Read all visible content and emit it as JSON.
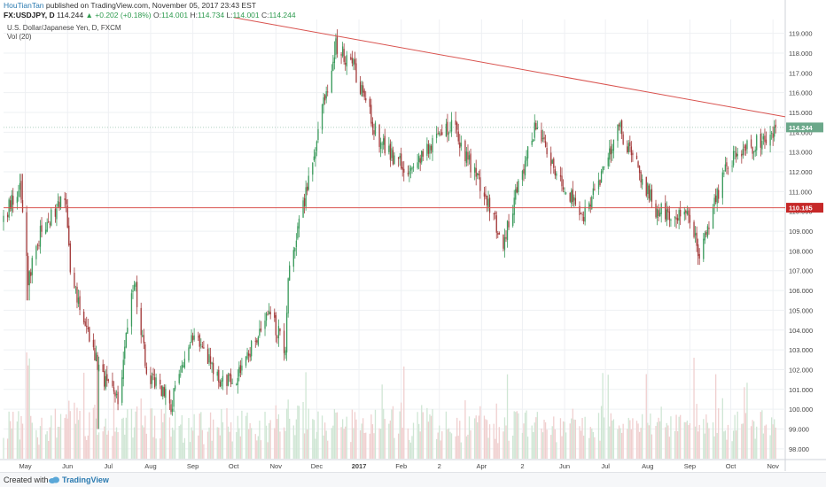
{
  "header": {
    "author": "HouTianTan",
    "published": "published on TradingView.com, November 05, 2017 23:43 EST",
    "symbol": "FX:USDJPY, D",
    "last": "114.244",
    "change": "+0.202 (+0.18%)",
    "o_label": "O:",
    "o": "114.001",
    "h_label": "H:",
    "h": "114.734",
    "l_label": "L:",
    "l": "114.001",
    "c_label": "C:",
    "c": "114.244"
  },
  "instrument_title": "U.S. Dollar/Japanese Yen, D, FXCM",
  "volume_label": "Vol (20)",
  "footer": {
    "created_with": "Created with",
    "brand": "TradingView"
  },
  "colors": {
    "bull": "#3a9a5b",
    "bear": "#a33a3a",
    "vol_bull": "#cfe6d4",
    "vol_bear": "#f0cfcf",
    "trendline": "#d9534f",
    "support": "#d9534f",
    "price_tag": "#6ba88a",
    "support_tag": "#c62828"
  },
  "chart_data": {
    "type": "candlestick",
    "symbol": "FX:USDJPY, D",
    "ylim": [
      97.5,
      119.7
    ],
    "y_ticks": [
      98,
      99,
      100,
      101,
      102,
      103,
      104,
      105,
      106,
      107,
      108,
      109,
      110,
      111,
      112,
      113,
      114,
      115,
      116,
      117,
      118,
      119
    ],
    "y_tick_labels": [
      "98.000",
      "99.000",
      "100.000",
      "101.000",
      "102.000",
      "103.000",
      "104.000",
      "105.000",
      "106.000",
      "107.000",
      "108.000",
      "109.000",
      "110.000",
      "111.000",
      "112.000",
      "113.000",
      "114.000",
      "115.000",
      "116.000",
      "117.000",
      "118.000",
      "119.000"
    ],
    "x_start": "2016-04-15",
    "x_end": "2017-11-10",
    "x_ticks": [
      {
        "date": "2016-05-01",
        "label": "May",
        "bold": false
      },
      {
        "date": "2016-06-01",
        "label": "Jun",
        "bold": false
      },
      {
        "date": "2016-07-01",
        "label": "Jul",
        "bold": false
      },
      {
        "date": "2016-08-01",
        "label": "Aug",
        "bold": false
      },
      {
        "date": "2016-09-01",
        "label": "Sep",
        "bold": false
      },
      {
        "date": "2016-10-01",
        "label": "Oct",
        "bold": false
      },
      {
        "date": "2016-11-01",
        "label": "Nov",
        "bold": false
      },
      {
        "date": "2016-12-01",
        "label": "Dec",
        "bold": false
      },
      {
        "date": "2017-01-01",
        "label": "2017",
        "bold": true
      },
      {
        "date": "2017-02-01",
        "label": "Feb",
        "bold": false
      },
      {
        "date": "2017-03-01",
        "label": "2",
        "bold": false
      },
      {
        "date": "2017-04-01",
        "label": "Apr",
        "bold": false
      },
      {
        "date": "2017-05-01",
        "label": "2",
        "bold": false
      },
      {
        "date": "2017-06-01",
        "label": "Jun",
        "bold": false
      },
      {
        "date": "2017-07-01",
        "label": "Jul",
        "bold": false
      },
      {
        "date": "2017-08-01",
        "label": "Aug",
        "bold": false
      },
      {
        "date": "2017-09-01",
        "label": "Sep",
        "bold": false
      },
      {
        "date": "2017-10-01",
        "label": "Oct",
        "bold": false
      },
      {
        "date": "2017-11-01",
        "label": "Nov",
        "bold": false
      }
    ],
    "price_path": [
      [
        "2016-04-15",
        109.5
      ],
      [
        "2016-04-27",
        111.5
      ],
      [
        "2016-05-03",
        106.5
      ],
      [
        "2016-05-12",
        109.0
      ],
      [
        "2016-05-30",
        110.9
      ],
      [
        "2016-06-03",
        107.0
      ],
      [
        "2016-06-16",
        104.0
      ],
      [
        "2016-06-24",
        102.0
      ],
      [
        "2016-07-08",
        100.5
      ],
      [
        "2016-07-20",
        106.5
      ],
      [
        "2016-07-29",
        102.0
      ],
      [
        "2016-08-16",
        100.2
      ],
      [
        "2016-09-02",
        104.0
      ],
      [
        "2016-09-21",
        101.5
      ],
      [
        "2016-10-03",
        101.5
      ],
      [
        "2016-10-27",
        105.0
      ],
      [
        "2016-11-08",
        103.0
      ],
      [
        "2016-11-10",
        106.5
      ],
      [
        "2016-12-15",
        118.5
      ],
      [
        "2016-12-28",
        117.3
      ],
      [
        "2017-01-16",
        113.5
      ],
      [
        "2017-02-06",
        112.0
      ],
      [
        "2017-03-10",
        114.5
      ],
      [
        "2017-04-05",
        110.5
      ],
      [
        "2017-04-17",
        108.5
      ],
      [
        "2017-05-10",
        114.3
      ],
      [
        "2017-06-14",
        109.5
      ],
      [
        "2017-07-11",
        114.2
      ],
      [
        "2017-08-08",
        110.0
      ],
      [
        "2017-08-30",
        109.8
      ],
      [
        "2017-09-08",
        107.8
      ],
      [
        "2017-09-29",
        112.5
      ],
      [
        "2017-10-27",
        113.8
      ],
      [
        "2017-11-03",
        114.2
      ]
    ],
    "price_extremes": [
      {
        "date": "2016-04-28",
        "high": 111.9
      },
      {
        "date": "2016-05-03",
        "low": 105.5
      },
      {
        "date": "2016-06-24",
        "low": 99.0
      },
      {
        "date": "2016-12-15",
        "high": 118.6
      },
      {
        "date": "2017-09-08",
        "low": 107.3
      }
    ],
    "trendline": {
      "start": [
        "2016-10-01",
        119.8
      ],
      "end": [
        "2017-11-10",
        114.78
      ]
    },
    "support": 110.185,
    "price_labels": [
      {
        "value": 114.244,
        "label": "114.244",
        "kind": "last"
      },
      {
        "value": 110.185,
        "label": "110.185",
        "kind": "support"
      }
    ],
    "volume": {
      "name": "Vol (20)",
      "relative": true
    }
  }
}
